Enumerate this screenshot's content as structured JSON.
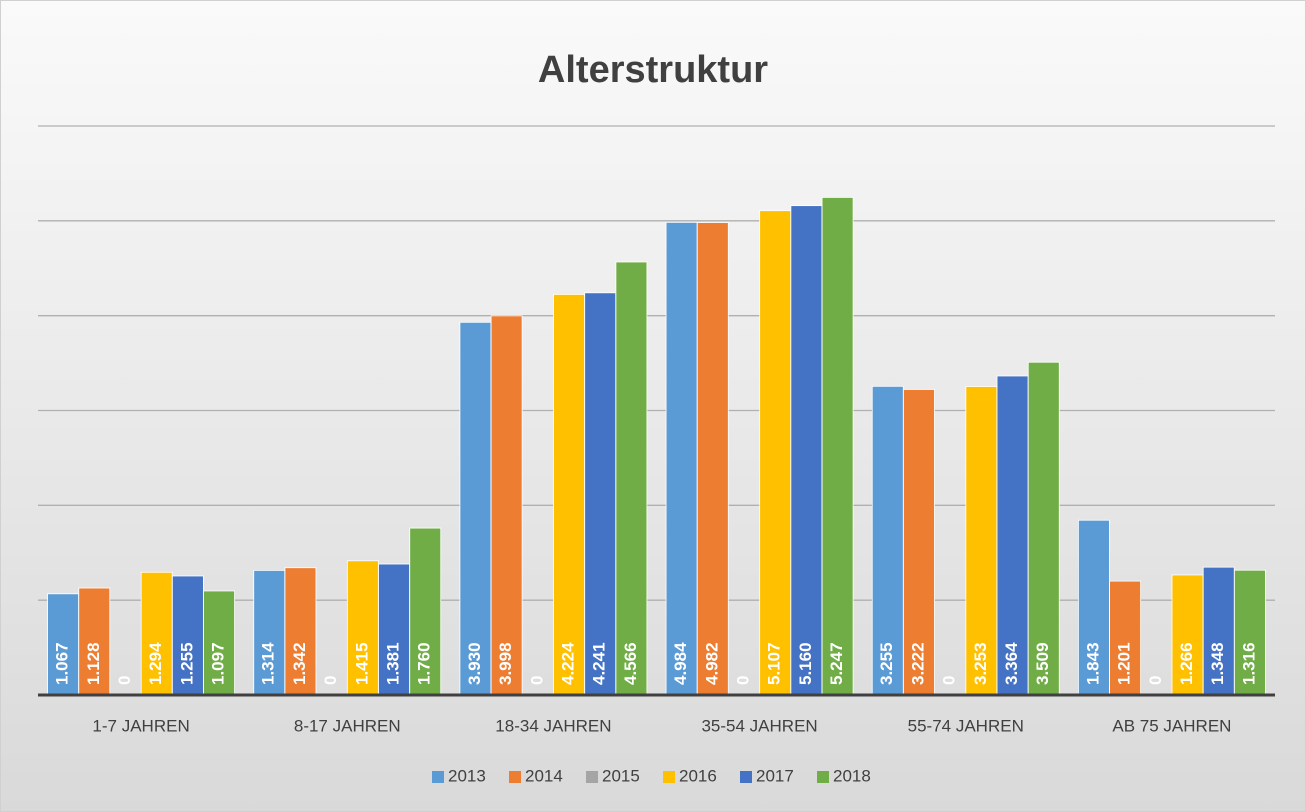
{
  "chart_data": {
    "type": "bar",
    "title": "Alterstruktur",
    "categories": [
      "1-7 JAHREN",
      "8-17 JAHREN",
      "18-34 JAHREN",
      "35-54 JAHREN",
      "55-74 JAHREN",
      "AB 75 JAHREN"
    ],
    "series": [
      {
        "name": "2013",
        "color": "#5b9bd5",
        "values": [
          1067,
          1314,
          3930,
          4984,
          3255,
          1843
        ],
        "value_labels": [
          "1.067",
          "1.314",
          "3.930",
          "4.984",
          "3.255",
          "1.843"
        ]
      },
      {
        "name": "2014",
        "color": "#ed7d31",
        "values": [
          1128,
          1342,
          3998,
          4982,
          3222,
          1201
        ],
        "value_labels": [
          "1.128",
          "1.342",
          "3.998",
          "4.982",
          "3.222",
          "1.201"
        ]
      },
      {
        "name": "2015",
        "color": "#a5a5a5",
        "values": [
          0,
          0,
          0,
          0,
          0,
          0
        ],
        "value_labels": [
          "0",
          "0",
          "0",
          "0",
          "0",
          "0"
        ]
      },
      {
        "name": "2016",
        "color": "#ffc000",
        "values": [
          1294,
          1415,
          4224,
          5107,
          3253,
          1266
        ],
        "value_labels": [
          "1.294",
          "1.415",
          "4.224",
          "5.107",
          "3.253",
          "1.266"
        ]
      },
      {
        "name": "2017",
        "color": "#4472c4",
        "values": [
          1255,
          1381,
          4241,
          5160,
          3364,
          1348
        ],
        "value_labels": [
          "1.255",
          "1.381",
          "4.241",
          "5.160",
          "3.364",
          "1.348"
        ]
      },
      {
        "name": "2018",
        "color": "#70ad47",
        "values": [
          1097,
          1760,
          4566,
          5247,
          3509,
          1316
        ],
        "value_labels": [
          "1.097",
          "1.760",
          "4.566",
          "5.247",
          "3.509",
          "1.316"
        ]
      }
    ],
    "ylim": [
      0,
      6000
    ],
    "yticks": [
      0,
      1000,
      2000,
      3000,
      4000,
      5000,
      6000
    ],
    "grid": true,
    "legend": "bottom"
  }
}
